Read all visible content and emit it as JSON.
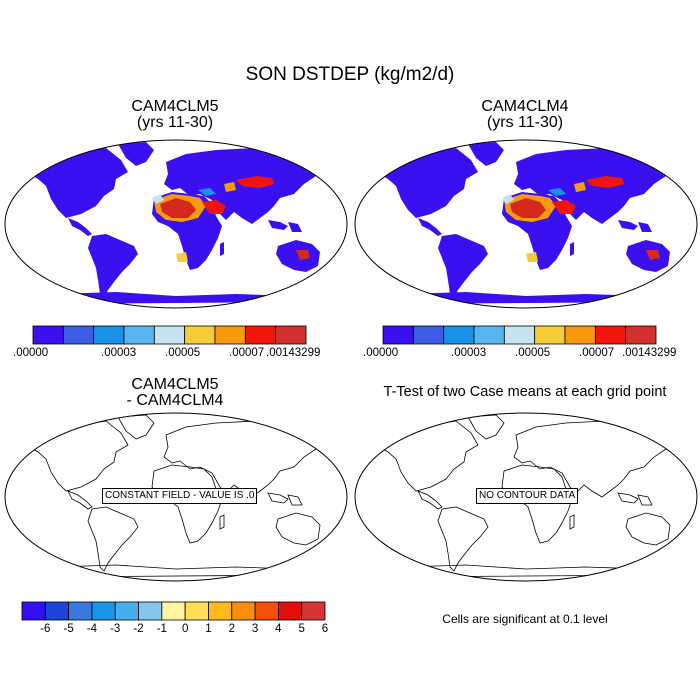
{
  "figure": {
    "title": "SON DSTDEP (kg/m2/d)"
  },
  "panels": [
    {
      "id": "top-left",
      "title": "CAM4CLM5",
      "subtitle": "(yrs 11-30)",
      "colorbar_labels": [
        ".00000",
        ".00003",
        ".00005",
        ".00007",
        ".00143299"
      ]
    },
    {
      "id": "top-right",
      "title": "CAM4CLM4",
      "subtitle": "(yrs 11-30)",
      "colorbar_labels": [
        ".00000",
        ".00003",
        ".00005",
        ".00007",
        ".00143299"
      ]
    },
    {
      "id": "bottom-left",
      "title": "CAM4CLM5",
      "subtitle": "- CAM4CLM4",
      "note": "CONSTANT FIELD - VALUE IS .0",
      "colorbar_labels": [
        "-6",
        "-5",
        "-4",
        "-3",
        "-2",
        "-1",
        "0",
        "1",
        "2",
        "3",
        "4",
        "5",
        "6"
      ]
    },
    {
      "id": "bottom-right",
      "title": "T-Test of two Case means at each grid point",
      "note": "NO CONTOUR DATA",
      "footer": "Cells are significant at 0.1 level"
    }
  ],
  "colors": {
    "top_colorbar": [
      "#3a10f0",
      "#3c5ce6",
      "#1a90e6",
      "#58b4ee",
      "#c4e4f4",
      "#f6cc38",
      "#f79a10",
      "#f0140a",
      "#d43030"
    ],
    "diff_colorbar": [
      "#3010f0",
      "#1c44d8",
      "#3a78e0",
      "#1896e8",
      "#46aeec",
      "#84c8ee",
      "#fff7a0",
      "#ffde58",
      "#ffb81e",
      "#f98e0e",
      "#f5500a",
      "#e01008",
      "#d43535"
    ],
    "land_low": "#3a10f0",
    "source_high": "#d4281c",
    "source_mid": "#f79a10",
    "source_light": "#c4e4f4",
    "coastline": "#000000"
  }
}
